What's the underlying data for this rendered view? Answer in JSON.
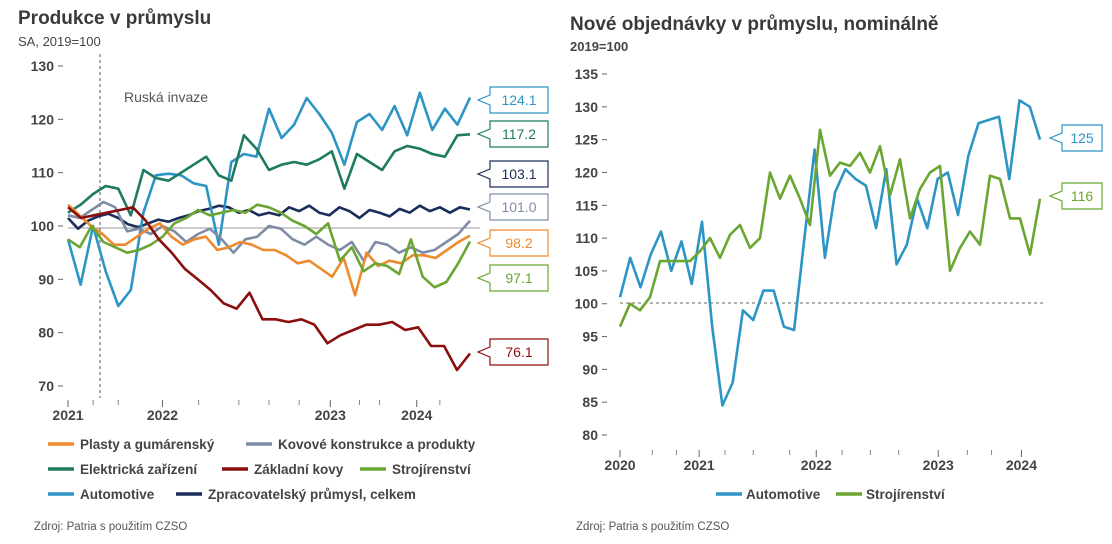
{
  "colors": {
    "plasty": "#ED8B2E",
    "kovove": "#7E8DA5",
    "elektricka": "#1E7B5F",
    "zakladni": "#8B0E0E",
    "strojirenstvi": "#6AA631",
    "automotive": "#2D95C5",
    "zpracovatelsky": "#1B2E5A"
  },
  "chart_data": [
    {
      "type": "line",
      "title": "Produkce v průmyslu",
      "subtitle": "SA, 2019=100",
      "ylim": [
        70,
        130
      ],
      "yticks": [
        "130",
        "120",
        "110",
        "100",
        "90",
        "80",
        "70"
      ],
      "xlim": [
        0,
        40
      ],
      "xticks": [
        "2021",
        "2022",
        "2023",
        "2024"
      ],
      "annotation": "Ruská invaze",
      "series": [
        {
          "name": "Zpracovatelský průmysl, celkem",
          "color_key": "zpracovatelsky",
          "last": "103.1",
          "values": [
            101.5,
            99.5,
            101.0,
            101.8,
            102.3,
            101.5,
            100.3,
            99.8,
            100.5,
            101.2,
            100.8,
            101.5,
            102.0,
            102.8,
            103.2,
            103.8,
            103.5,
            102.5,
            103.0,
            102.0,
            102.5,
            102.0,
            103.5,
            102.8,
            103.8,
            102.5,
            102.0,
            103.5,
            102.8,
            101.5,
            103.0,
            102.5,
            101.8,
            103.2,
            102.5,
            103.8,
            102.8,
            103.5,
            102.5,
            103.5,
            103.1
          ]
        },
        {
          "name": "Automotive",
          "color_key": "automotive",
          "last": "124.1",
          "values": [
            97.5,
            89.0,
            100.0,
            91.5,
            85.0,
            88.0,
            102.5,
            109.5,
            109.8,
            109.5,
            108.0,
            107.5,
            96.5,
            112.0,
            113.5,
            113.0,
            122.0,
            116.5,
            119.0,
            124.0,
            121.0,
            117.5,
            111.5,
            119.5,
            121.0,
            118.0,
            122.5,
            117.0,
            125.0,
            118.0,
            122.0,
            119.0,
            124.1
          ]
        },
        {
          "name": "Elektrická zařízení",
          "color_key": "elektricka",
          "last": "117.2",
          "values": [
            102.5,
            104.0,
            106.0,
            107.5,
            107.0,
            102.0,
            110.5,
            109.0,
            108.5,
            110.0,
            111.5,
            113.0,
            109.5,
            108.5,
            117.0,
            114.5,
            110.5,
            111.5,
            112.0,
            111.5,
            112.5,
            114.0,
            107.0,
            113.5,
            112.0,
            110.5,
            114.0,
            115.0,
            114.5,
            113.5,
            113.0,
            117.0,
            117.2
          ]
        },
        {
          "name": "Kovové konstrukce a produkty",
          "color_key": "kovove",
          "last": "101.0",
          "values": [
            102.0,
            101.5,
            103.0,
            104.5,
            103.5,
            99.0,
            99.5,
            98.5,
            100.0,
            99.0,
            97.0,
            98.5,
            99.5,
            97.5,
            95.0,
            97.5,
            98.0,
            100.0,
            99.5,
            97.5,
            96.5,
            98.0,
            96.5,
            95.5,
            97.0,
            93.5,
            97.0,
            96.5,
            95.0,
            96.0,
            95.0,
            95.5,
            97.0,
            98.5,
            101.0
          ]
        },
        {
          "name": "Plasty a gumárenský",
          "color_key": "plasty",
          "last": "98.2",
          "values": [
            104.0,
            102.0,
            100.0,
            98.5,
            96.5,
            96.5,
            98.0,
            99.5,
            100.5,
            98.0,
            96.5,
            97.5,
            98.0,
            95.5,
            96.0,
            97.0,
            96.5,
            95.5,
            95.5,
            94.5,
            93.0,
            93.5,
            92.0,
            90.5,
            94.0,
            87.0,
            95.0,
            92.5,
            93.5,
            93.0,
            94.5,
            94.5,
            94.0,
            95.5,
            97.0,
            98.2
          ]
        },
        {
          "name": "Strojírenství",
          "color_key": "strojirenstvi",
          "last": "97.1",
          "values": [
            97.5,
            96.0,
            100.0,
            97.0,
            96.0,
            95.0,
            95.5,
            96.5,
            98.0,
            100.5,
            101.5,
            103.0,
            102.0,
            102.5,
            103.0,
            102.5,
            104.0,
            103.5,
            102.5,
            101.0,
            100.0,
            98.5,
            100.5,
            93.5,
            96.0,
            91.5,
            93.0,
            92.5,
            91.0,
            97.5,
            90.5,
            88.5,
            89.5,
            93.0,
            97.1
          ]
        },
        {
          "name": "Základní kovy",
          "color_key": "zakladni",
          "last": "76.1",
          "values": [
            103.5,
            101.5,
            102.0,
            102.5,
            103.0,
            103.5,
            101.0,
            97.5,
            95.0,
            92.0,
            90.0,
            88.0,
            85.5,
            84.5,
            87.5,
            82.5,
            82.5,
            82.0,
            82.5,
            81.5,
            78.0,
            79.5,
            80.5,
            81.5,
            81.5,
            82.0,
            80.5,
            81.0,
            77.5,
            77.5,
            73.0,
            76.1
          ]
        }
      ]
    },
    {
      "type": "line",
      "title": "Nové objednávky v průmyslu, nominálně",
      "subtitle": "2019=100",
      "ylim": [
        80,
        135
      ],
      "yticks": [
        "135",
        "130",
        "125",
        "120",
        "115",
        "110",
        "105",
        "100",
        "95",
        "90",
        "85",
        "80"
      ],
      "xlim": [
        0,
        52
      ],
      "xticks": [
        "2020",
        "2021",
        "2022",
        "2023",
        "2024"
      ],
      "series": [
        {
          "name": "Automotive",
          "color_key": "automotive",
          "last": "125",
          "values": [
            101.0,
            107.0,
            102.5,
            107.5,
            111.0,
            105.0,
            109.5,
            103.0,
            112.5,
            96.5,
            84.5,
            88.0,
            99.0,
            97.5,
            102.0,
            102.0,
            96.5,
            96.0,
            110.0,
            123.5,
            107.0,
            117.0,
            120.5,
            119.0,
            118.0,
            111.5,
            120.5,
            106.0,
            109.0,
            116.0,
            111.5,
            119.0,
            120.0,
            113.5,
            122.5,
            127.5,
            128.0,
            128.5,
            119.0,
            131.0,
            130.0,
            125.0
          ]
        },
        {
          "name": "Strojírenství",
          "color_key": "strojirenstvi",
          "last": "116",
          "values": [
            96.5,
            100.0,
            99.0,
            101.0,
            106.5,
            106.5,
            106.5,
            106.5,
            108.0,
            110.0,
            107.0,
            110.5,
            112.0,
            108.5,
            110.0,
            120.0,
            116.0,
            119.5,
            116.0,
            112.0,
            126.5,
            119.5,
            121.5,
            121.0,
            123.0,
            120.0,
            124.0,
            116.5,
            122.0,
            113.0,
            117.5,
            120.0,
            121.0,
            105.0,
            108.5,
            111.0,
            109.0,
            119.5,
            119.0,
            113.0,
            113.0,
            107.5,
            116.0
          ]
        }
      ]
    }
  ],
  "legend_left": [
    [
      "Plasty a gumárenský",
      "Kovové konstrukce a produkty"
    ],
    [
      "Elektrická zařízení",
      "Základní kovy",
      "Strojírenství"
    ],
    [
      "Automotive",
      "Zpracovatelský průmysl, celkem"
    ]
  ],
  "legend_right": [
    "Automotive",
    "Strojírenství"
  ],
  "source_left": "Zdroj: Patria s použitím CZSO",
  "source_right": "Zdroj: Patria s použitím CZSO"
}
